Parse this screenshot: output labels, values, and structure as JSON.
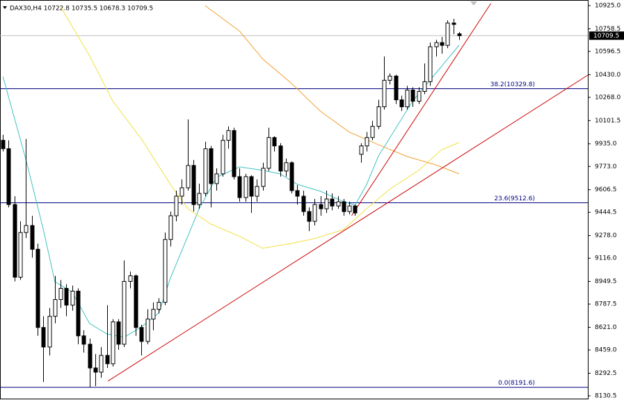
{
  "chart_data": {
    "type": "candlestick",
    "title": "DAX30,H4  10722.8 10735.5 10678.3 10709.5",
    "up_color": "#ffffff",
    "down_color": "#000000",
    "open": [
      9960,
      9900,
      9500,
      8980,
      9300,
      9350,
      9180,
      8620,
      8480,
      8700,
      8820,
      8900,
      8780,
      8880,
      8560,
      8500,
      8330,
      8300,
      8420,
      8360,
      8660,
      8500,
      8950,
      8990,
      8620,
      8520,
      8680,
      8750,
      8800,
      9250,
      9420,
      9560,
      9620,
      9780,
      9500,
      9580,
      9900,
      9650,
      9720,
      9960,
      10030,
      9700,
      9550,
      9700,
      9560,
      9630,
      9760,
      9980,
      9920,
      9740,
      9800,
      9600,
      9560,
      9450,
      9380,
      9500,
      9470,
      9540,
      9490,
      9520,
      9450,
      9490,
      9860,
      9920,
      9980,
      10060,
      10200,
      10390,
      10420,
      10250,
      10200,
      10320,
      10240,
      10310,
      10380,
      10630,
      10660,
      10640,
      10800,
      10722.8
    ],
    "high": [
      10000,
      9960,
      9560,
      9380,
      9970,
      9420,
      9220,
      8700,
      8760,
      8990,
      8960,
      8930,
      8920,
      8900,
      8600,
      8540,
      8430,
      8480,
      8780,
      8680,
      8680,
      9100,
      9020,
      9000,
      8640,
      8750,
      8800,
      8830,
      9300,
      9450,
      9600,
      9680,
      10110,
      9820,
      9650,
      9950,
      9920,
      9760,
      10000,
      10060,
      10050,
      9760,
      9720,
      9710,
      9680,
      9800,
      10050,
      9990,
      9940,
      9830,
      9810,
      9640,
      9600,
      9480,
      9540,
      9560,
      9600,
      9580,
      9560,
      9540,
      9520,
      9500,
      9940,
      10020,
      10100,
      10250,
      10560,
      10440,
      10430,
      10280,
      10350,
      10340,
      10340,
      10510,
      10660,
      10680,
      10700,
      10820,
      10830,
      10735.5
    ],
    "low": [
      9880,
      9480,
      8950,
      8960,
      9260,
      9120,
      8560,
      8230,
      8420,
      8650,
      8760,
      8700,
      8740,
      8500,
      8440,
      8190,
      8200,
      8260,
      8330,
      8340,
      8460,
      8480,
      8900,
      8560,
      8420,
      8500,
      8600,
      8720,
      8780,
      9200,
      9380,
      9500,
      9600,
      9450,
      9470,
      9560,
      9480,
      9600,
      9700,
      9900,
      9680,
      9520,
      9520,
      9440,
      9520,
      9600,
      9740,
      9880,
      9700,
      9700,
      9580,
      9500,
      9420,
      9310,
      9350,
      9420,
      9440,
      9460,
      9470,
      9420,
      9430,
      9420,
      9800,
      9880,
      9960,
      10040,
      10180,
      10360,
      10220,
      10170,
      10180,
      10200,
      10220,
      10290,
      10350,
      10560,
      10580,
      10620,
      10720,
      10678.3
    ],
    "close": [
      9900,
      9500,
      8980,
      9300,
      9350,
      9180,
      8620,
      8480,
      8700,
      8820,
      8900,
      8780,
      8880,
      8560,
      8500,
      8330,
      8300,
      8420,
      8360,
      8660,
      8500,
      8950,
      8990,
      8620,
      8520,
      8680,
      8750,
      8800,
      9250,
      9420,
      9560,
      9620,
      9780,
      9500,
      9580,
      9900,
      9650,
      9720,
      9960,
      10030,
      9700,
      9550,
      9700,
      9560,
      9630,
      9760,
      9980,
      9920,
      9740,
      9800,
      9600,
      9560,
      9450,
      9380,
      9500,
      9470,
      9540,
      9490,
      9520,
      9450,
      9490,
      9440,
      9920,
      9980,
      10060,
      10200,
      10390,
      10420,
      10250,
      10200,
      10320,
      10240,
      10310,
      10380,
      10630,
      10660,
      10640,
      10800,
      10790,
      10709.5
    ],
    "moving_averages": [
      {
        "color": "#40c0c0",
        "x": [
          0,
          4,
          7,
          9,
          12,
          15,
          18,
          21,
          24,
          27,
          29,
          31,
          34,
          37,
          41,
          45,
          48,
          51,
          55,
          59,
          61,
          63,
          65,
          68,
          71,
          74,
          79
        ],
        "values": [
          10417,
          9819,
          9321,
          8948,
          8873,
          8649,
          8574,
          8550,
          8624,
          8724,
          8973,
          9172,
          9471,
          9695,
          9770,
          9745,
          9720,
          9645,
          9595,
          9521,
          9496,
          9645,
          9844,
          10044,
          10243,
          10392,
          10641
        ]
      },
      {
        "color": "#f0e040",
        "x": [
          10,
          15,
          19,
          24,
          29,
          32,
          36,
          41,
          45,
          50,
          54,
          59,
          63,
          67,
          72,
          76,
          79
        ],
        "values": [
          10915,
          10566,
          10243,
          9969,
          9645,
          9471,
          9361,
          9272,
          9187,
          9222,
          9257,
          9321,
          9471,
          9610,
          9745,
          9894,
          9944
        ]
      },
      {
        "color": "#f0a030",
        "x": [
          35,
          41,
          45,
          50,
          55,
          60,
          65,
          70,
          75,
          79
        ],
        "values": [
          10925,
          10741,
          10542,
          10367,
          10168,
          10019,
          9929,
          9844,
          9784,
          9720
        ]
      }
    ],
    "trendlines": [
      {
        "color": "#cc0000",
        "x": [
          18.2,
          101.3
        ],
        "values": [
          8236,
          10427
        ]
      },
      {
        "color": "#cc0000",
        "x": [
          60.4,
          84.5
        ],
        "values": [
          9421,
          10940
        ]
      }
    ],
    "levels": [
      {
        "value": 10329.8,
        "label": "38.2(10329.8)",
        "color": "#000080"
      },
      {
        "value": 9512.6,
        "label": "23.6(9512.6)",
        "color": "#000080"
      },
      {
        "value": 8191.6,
        "label": "0.0(8191.6)",
        "color": "#000080"
      }
    ],
    "last_price": {
      "value": 10709.5,
      "label": "10709.5"
    },
    "xlim": [
      -0.5,
      101.3
    ],
    "ylim": [
      8110.6,
      10964.8
    ],
    "yticks": [
      {
        "value": 10925,
        "label": "10925.0"
      },
      {
        "value": 10758.5,
        "label": "10758.5"
      },
      {
        "value": 10596.5,
        "label": "10596.5"
      },
      {
        "value": 10430,
        "label": "10430.0"
      },
      {
        "value": 10268,
        "label": "10268.0"
      },
      {
        "value": 10101.5,
        "label": "10101.5"
      },
      {
        "value": 9935,
        "label": "9935.0"
      },
      {
        "value": 9773,
        "label": "9773.0"
      },
      {
        "value": 9606.5,
        "label": "9606.5"
      },
      {
        "value": 9444.5,
        "label": "9444.5"
      },
      {
        "value": 9278,
        "label": "9278.0"
      },
      {
        "value": 9116,
        "label": "9116.0"
      },
      {
        "value": 8949.5,
        "label": "8949.5"
      },
      {
        "value": 8787.5,
        "label": "8787.5"
      },
      {
        "value": 8621,
        "label": "8621.0"
      },
      {
        "value": 8459,
        "label": "8459.0"
      },
      {
        "value": 8292.5,
        "label": "8292.5"
      },
      {
        "value": 8130.5,
        "label": "8130.5"
      }
    ]
  }
}
